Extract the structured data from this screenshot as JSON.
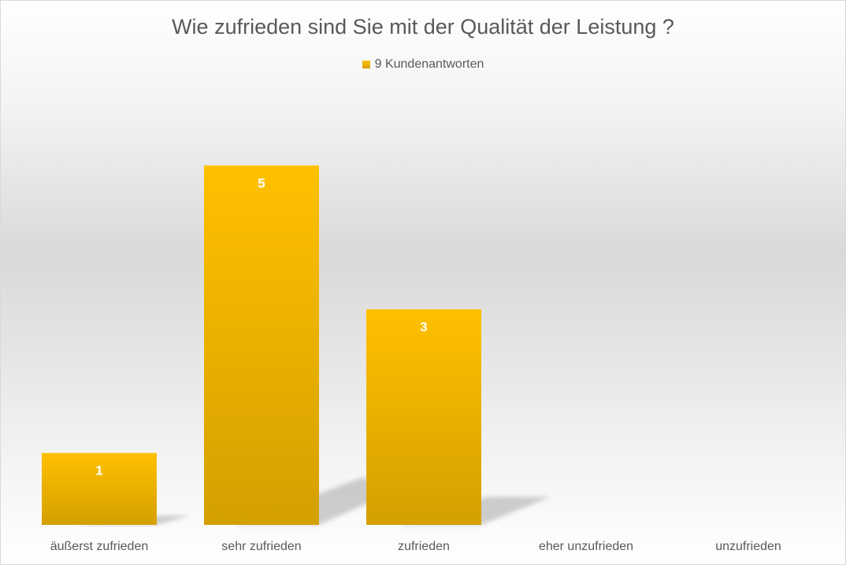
{
  "chart_data": {
    "type": "bar",
    "title": "Wie zufrieden sind Sie mit der Qualität der Leistung ?",
    "categories": [
      "äußerst zufrieden",
      "sehr zufrieden",
      "zufrieden",
      "eher unzufrieden",
      "unzufrieden"
    ],
    "series": [
      {
        "name": "9 Kundenantworten",
        "values": [
          1,
          5,
          3,
          0,
          0
        ]
      }
    ],
    "ylim": [
      0,
      6
    ],
    "grid": false,
    "legend_position": "top",
    "data_labels": true,
    "colors": {
      "bar_top": "#ffc000",
      "bar_bottom": "#d4a000",
      "label": "#ffffff",
      "text": "#595959"
    }
  }
}
